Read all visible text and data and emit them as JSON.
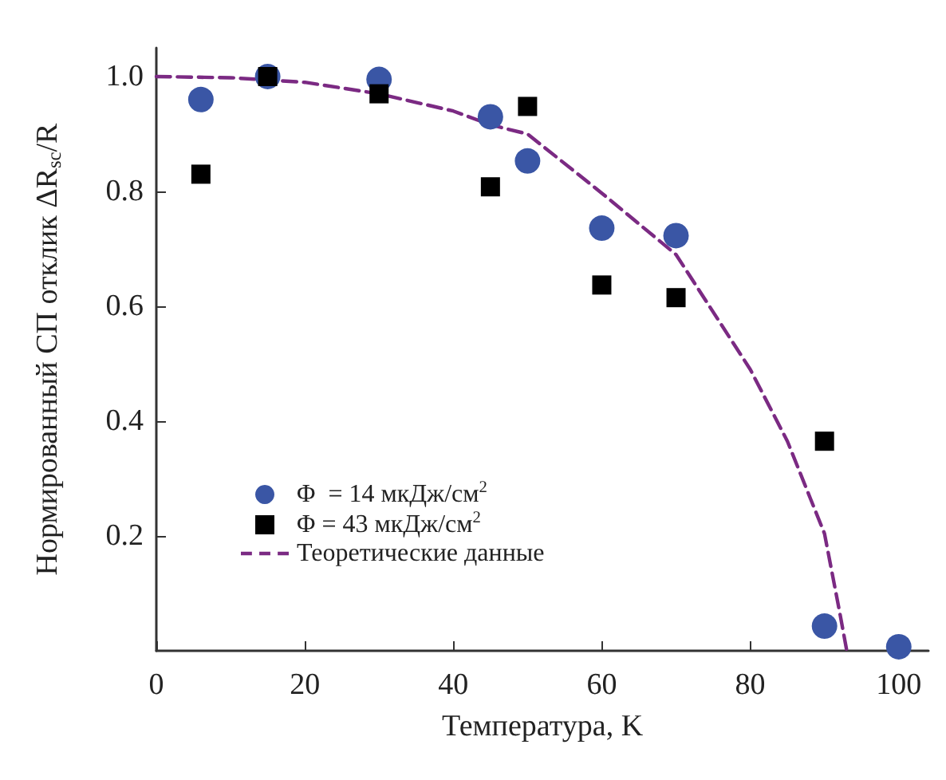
{
  "chart_data": {
    "type": "scatter",
    "xlabel": "Температура, K",
    "ylabel": "Нормированный СП отклик ΔR$_{sc}$/R",
    "xlim": [
      0,
      104
    ],
    "ylim": [
      0,
      1.05
    ],
    "xticks": [
      0,
      20,
      40,
      60,
      80,
      100
    ],
    "yticks": [
      0.2,
      0.4,
      0.6,
      0.8,
      {
        "value": 1,
        "label": "1.0"
      }
    ],
    "grid": false,
    "legend": "bottom left",
    "series": [
      {
        "name": "Φ  = 14 мкДж/см$^{2}$",
        "marker": "circle",
        "color": "#3a56a5",
        "x": [
          6,
          15,
          30,
          45,
          50,
          60,
          70,
          90,
          100
        ],
        "values": [
          0.96,
          1.0,
          0.995,
          0.93,
          0.853,
          0.736,
          0.723,
          0.043,
          0.007
        ]
      },
      {
        "name": "Φ = 43 мкДж/см$^{2}$",
        "marker": "square",
        "color": "#000000",
        "x": [
          6,
          15,
          30,
          45,
          50,
          60,
          70,
          90
        ],
        "values": [
          0.83,
          1.0,
          0.97,
          0.808,
          0.948,
          0.637,
          0.615,
          0.365
        ]
      },
      {
        "name": "Теоретические данные",
        "type": "line",
        "marker": "none",
        "line_style": "dashed",
        "color": "#7b2a83",
        "x": [
          0,
          10,
          20,
          30,
          40,
          45,
          50,
          60,
          70,
          80,
          85,
          90,
          92,
          93
        ],
        "values": [
          1.0,
          0.998,
          0.99,
          0.97,
          0.94,
          0.916,
          0.9,
          0.797,
          0.69,
          0.49,
          0.365,
          0.204,
          0.07,
          0
        ]
      }
    ]
  }
}
